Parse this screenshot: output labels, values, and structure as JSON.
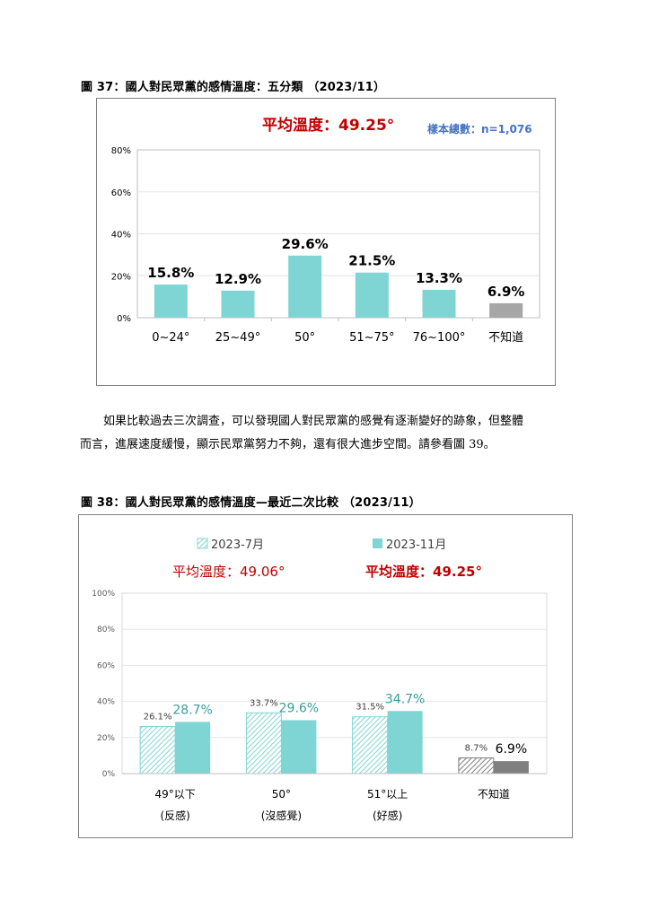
{
  "figure37": {
    "caption": "圖 37：國人對民眾黨的感情溫度：五分類 （2023/11）",
    "average": "平均溫度：49.25°",
    "sample": "樣本總數：n=1,076",
    "colors": {
      "bar": "#7fd5d3",
      "unknown": "#a6a6a6",
      "average": "#c00000",
      "sample": "#4472c4"
    },
    "chart_data": {
      "type": "bar",
      "categories": [
        "0~24°",
        "25~49°",
        "50°",
        "51~75°",
        "76~100°",
        "不知道"
      ],
      "values": [
        15.8,
        12.9,
        29.6,
        21.5,
        13.3,
        6.9
      ],
      "value_labels": [
        "15.8%",
        "12.9%",
        "29.6%",
        "21.5%",
        "13.3%",
        "6.9%"
      ],
      "ylim": [
        0,
        80
      ],
      "yticks": [
        "0%",
        "20%",
        "40%",
        "60%",
        "80%"
      ],
      "grid": true
    }
  },
  "paragraph": {
    "line1": "如果比較過去三次調查，可以發現國人對民眾黨的感覺有逐漸變好的跡象，但整體",
    "line2": "而言，進展速度緩慢，顯示民眾黨努力不夠，還有很大進步空間。請參看圖 39。"
  },
  "figure38": {
    "caption": "圖 38：國人對民眾黨的感情溫度—最近二次比較 （2023/11）",
    "average_left": "平均溫度：49.06°",
    "average_right": "平均溫度：49.25°",
    "colors": {
      "series2": "#7fd5d3",
      "series1_hatch": "#7fd5d3",
      "unknown": "#7f7f7f",
      "average": "#c00000",
      "label2": "#3a9e9c"
    },
    "chart_data": {
      "type": "bar",
      "categories": [
        "49°以下",
        "50°",
        "51°以上",
        "不知道"
      ],
      "category_sublabels": [
        "(反感)",
        "(沒感覺)",
        "(好感)",
        ""
      ],
      "series": [
        {
          "name": "2023-7月",
          "values": [
            26.1,
            33.7,
            31.5,
            8.7
          ],
          "labels": [
            "26.1%",
            "33.7%",
            "31.5%",
            "8.7%"
          ]
        },
        {
          "name": "2023-11月",
          "values": [
            28.7,
            29.6,
            34.7,
            6.9
          ],
          "labels": [
            "28.7%",
            "29.6%",
            "34.7%",
            "6.9%"
          ]
        }
      ],
      "ylim": [
        0,
        100
      ],
      "yticks": [
        "0%",
        "20%",
        "40%",
        "60%",
        "80%",
        "100%"
      ],
      "grid": true,
      "legend_position": "top"
    }
  }
}
